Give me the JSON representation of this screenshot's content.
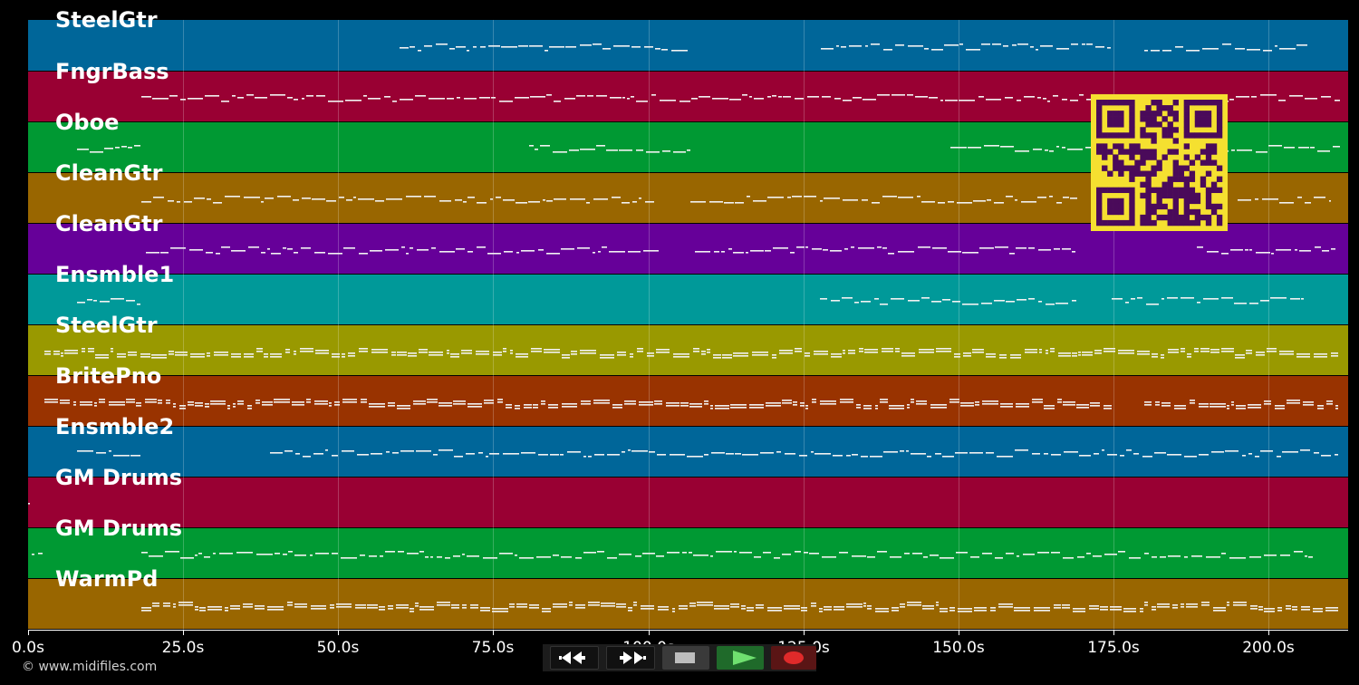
{
  "tracks": [
    {
      "name": "SteelGtr",
      "color": "#006699"
    },
    {
      "name": "FngrBass",
      "color": "#990033"
    },
    {
      "name": "Oboe",
      "color": "#009933"
    },
    {
      "name": "CleanGtr",
      "color": "#996600"
    },
    {
      "name": "CleanGtr",
      "color": "#660099"
    },
    {
      "name": "Ensmble1",
      "color": "#009999"
    },
    {
      "name": "SteelGtr",
      "color": "#999900"
    },
    {
      "name": "BritePno",
      "color": "#993300"
    },
    {
      "name": "Ensmble2",
      "color": "#006699"
    },
    {
      "name": "GM Drums",
      "color": "#990033"
    },
    {
      "name": "GM Drums",
      "color": "#009933"
    },
    {
      "name": "WarmPd",
      "color": "#996600"
    }
  ],
  "axis": {
    "ticks": [
      "0.0s",
      "25.0s",
      "50.0s",
      "75.0s",
      "100.0s",
      "125.0s",
      "150.0s",
      "175.0s",
      "200.0s"
    ]
  },
  "footer": {
    "copyright": "© www.midifiles.com"
  },
  "transport": {
    "rewind_icon": "rewind-icon",
    "forward_icon": "fast-forward-icon",
    "stop_icon": "stop-icon",
    "play_icon": "play-icon",
    "record_icon": "record-icon"
  },
  "qr_code": {
    "fg": "#4a0a5a",
    "bg": "#f5e030"
  }
}
